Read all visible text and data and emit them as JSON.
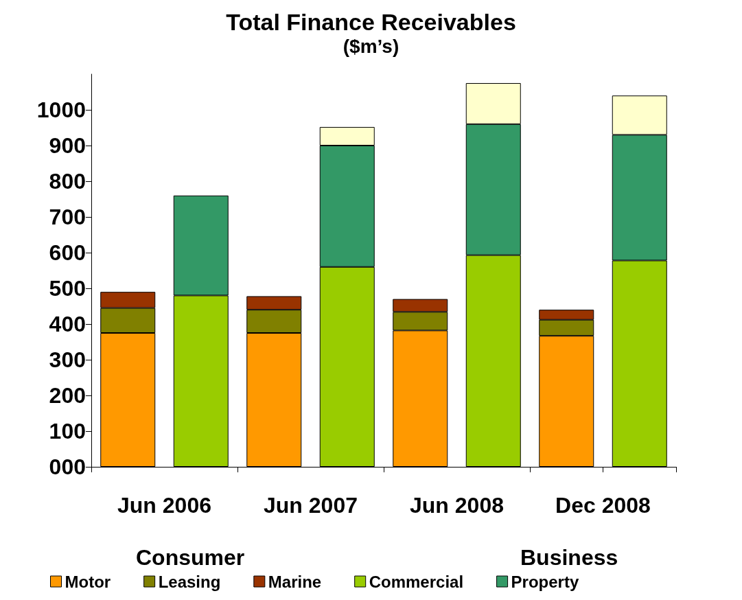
{
  "chart_data": {
    "type": "bar",
    "title": "Total Finance Receivables",
    "subtitle": "($m’s)",
    "categories": [
      "Jun 2006",
      null,
      "Jun 2007",
      null,
      "Jun 2008",
      null,
      "Dec 2008",
      null
    ],
    "stacked": true,
    "ylim": [
      0,
      1100
    ],
    "yticks": [
      {
        "value": 0,
        "label": "000"
      },
      100,
      200,
      300,
      400,
      500,
      600,
      700,
      800,
      900,
      1000
    ],
    "grid": false,
    "legend": "bottom",
    "annotations": [
      "Consumer",
      "Business"
    ],
    "series": [
      {
        "name": "Motor",
        "color": "#ff9900",
        "values": [
          375,
          null,
          375,
          null,
          382,
          null,
          367,
          null
        ]
      },
      {
        "name": "Leasing",
        "color": "#808000",
        "values": [
          70,
          null,
          65,
          null,
          52,
          null,
          45,
          null
        ]
      },
      {
        "name": "Marine",
        "color": "#993300",
        "values": [
          45,
          null,
          38,
          null,
          36,
          null,
          28,
          null
        ]
      },
      {
        "name": "Commercial",
        "color": "#99cc00",
        "values": [
          null,
          480,
          null,
          560,
          null,
          593,
          null,
          578
        ]
      },
      {
        "name": "Property",
        "color": "#339966",
        "values": [
          null,
          280,
          null,
          340,
          null,
          367,
          null,
          352
        ]
      },
      {
        "color": "#ffffcc",
        "values": [
          null,
          null,
          null,
          52,
          null,
          115,
          null,
          110
        ]
      }
    ]
  }
}
